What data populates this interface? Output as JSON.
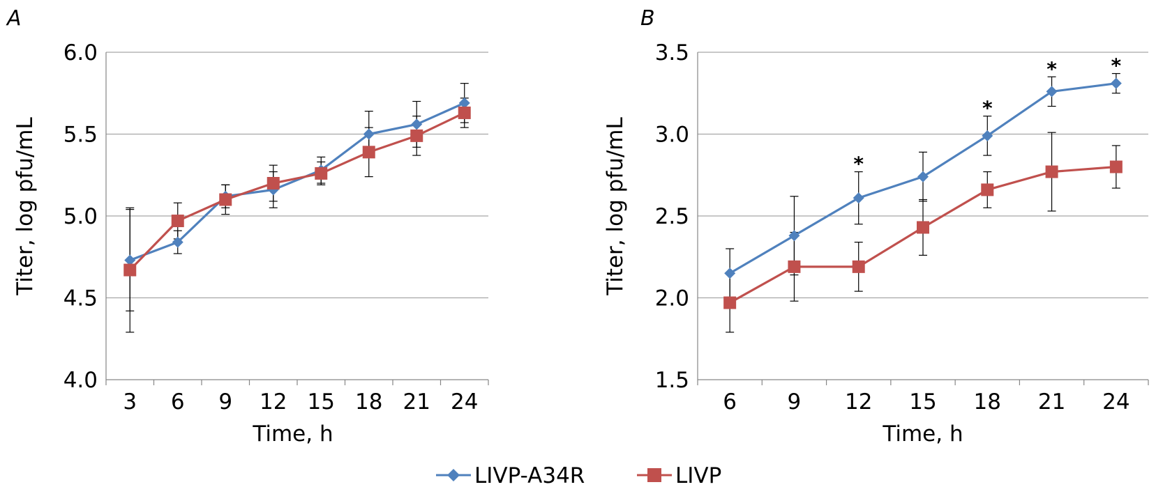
{
  "colors": {
    "series1": "#4F81BD",
    "series2": "#C0504D",
    "grid": "#A6A6A6",
    "axis": "#868686",
    "errorbar": "#000000"
  },
  "legend": {
    "placement": "bottom-center",
    "items": [
      "LIVP-A34R",
      "LIVP"
    ]
  },
  "chart_data": [
    {
      "panel": "A",
      "type": "line",
      "xlabel": "Time, h",
      "ylabel": "Titer, log pfu/mL",
      "categories": [
        "3",
        "6",
        "9",
        "12",
        "15",
        "18",
        "21",
        "24"
      ],
      "ylim": [
        4.0,
        6.0
      ],
      "yticks": [
        "4.0",
        "4.5",
        "5.0",
        "5.5",
        "6.0"
      ],
      "grid": true,
      "series": [
        {
          "name": "LIVP-A34R",
          "marker": "diamond",
          "color": "#4F81BD",
          "values": [
            4.73,
            4.84,
            5.12,
            5.16,
            5.28,
            5.5,
            5.56,
            5.69
          ],
          "errors": [
            0.31,
            0.07,
            0.07,
            0.11,
            0.08,
            0.14,
            0.14,
            0.12
          ]
        },
        {
          "name": "LIVP",
          "marker": "square",
          "color": "#C0504D",
          "values": [
            4.67,
            4.97,
            5.1,
            5.2,
            5.26,
            5.39,
            5.49,
            5.63
          ],
          "errors": [
            0.38,
            0.11,
            0.09,
            0.11,
            0.07,
            0.15,
            0.12,
            0.09
          ]
        }
      ],
      "significance": []
    },
    {
      "panel": "B",
      "type": "line",
      "xlabel": "Time, h",
      "ylabel": "Titer, log pfu/mL",
      "categories": [
        "6",
        "9",
        "12",
        "15",
        "18",
        "21",
        "24"
      ],
      "ylim": [
        1.5,
        3.5
      ],
      "yticks": [
        "1.5",
        "2.0",
        "2.5",
        "3.0",
        "3.5"
      ],
      "grid": true,
      "series": [
        {
          "name": "LIVP-A34R",
          "marker": "diamond",
          "color": "#4F81BD",
          "values": [
            2.15,
            2.38,
            2.61,
            2.74,
            2.99,
            3.26,
            3.31
          ],
          "errors": [
            0.15,
            0.24,
            0.16,
            0.15,
            0.12,
            0.09,
            0.06
          ]
        },
        {
          "name": "LIVP",
          "marker": "square",
          "color": "#C0504D",
          "values": [
            1.97,
            2.19,
            2.19,
            2.43,
            2.66,
            2.77,
            2.8
          ],
          "errors": [
            0.18,
            0.21,
            0.15,
            0.17,
            0.11,
            0.24,
            0.13
          ]
        }
      ],
      "significance": [
        {
          "category": "12",
          "label": "*"
        },
        {
          "category": "18",
          "label": "*"
        },
        {
          "category": "21",
          "label": "*"
        },
        {
          "category": "24",
          "label": "*"
        }
      ]
    }
  ]
}
